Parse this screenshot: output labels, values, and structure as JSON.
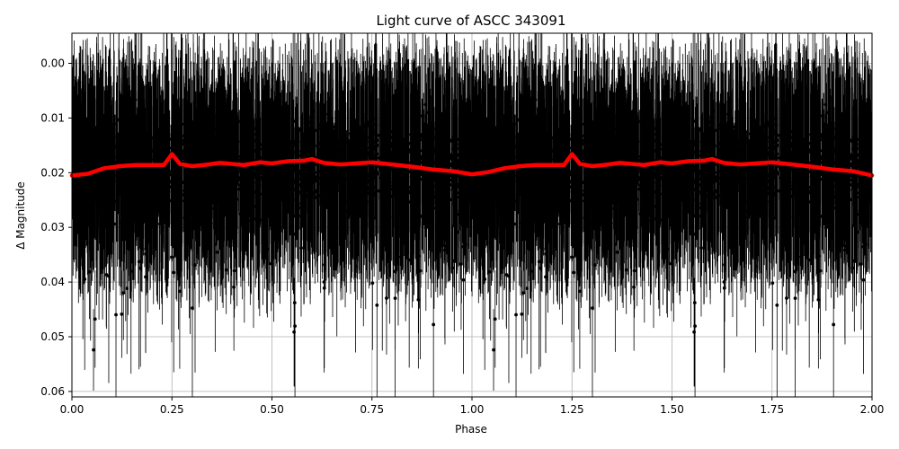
{
  "chart_data": {
    "type": "scatter",
    "title": "Light curve of ASCC 343091",
    "xlabel": "Phase",
    "ylabel": "Δ Magnitude",
    "xlim": [
      0.0,
      2.0
    ],
    "ylim": [
      0.061,
      -0.0055
    ],
    "y_inverted": true,
    "grid": true,
    "x_ticks": [
      "0.00",
      "0.25",
      "0.50",
      "0.75",
      "1.00",
      "1.25",
      "1.50",
      "1.75",
      "2.00"
    ],
    "y_ticks": [
      "0.00",
      "0.01",
      "0.02",
      "0.03",
      "0.04",
      "0.05",
      "0.06"
    ],
    "x_tick_values": [
      0.0,
      0.25,
      0.5,
      0.75,
      1.0,
      1.25,
      1.5,
      1.75,
      2.0
    ],
    "y_tick_values": [
      0.0,
      0.01,
      0.02,
      0.03,
      0.04,
      0.05,
      0.06
    ],
    "series": [
      {
        "role": "observations",
        "color": "#000000",
        "marker": "point-with-errorbar",
        "typical_center": 0.019,
        "typical_scatter": 0.012,
        "typical_error": 0.012
      },
      {
        "role": "binned-mean",
        "color": "#ff0000",
        "marker": "thick-line",
        "x": [
          0.0,
          0.04,
          0.08,
          0.12,
          0.16,
          0.2,
          0.23,
          0.25,
          0.27,
          0.3,
          0.33,
          0.37,
          0.4,
          0.43,
          0.47,
          0.5,
          0.54,
          0.58,
          0.6,
          0.63,
          0.67,
          0.71,
          0.75,
          0.8,
          0.85,
          0.9,
          0.95,
          1.0,
          1.04,
          1.08,
          1.12,
          1.16,
          1.2,
          1.23,
          1.25,
          1.27,
          1.3,
          1.33,
          1.37,
          1.4,
          1.43,
          1.47,
          1.5,
          1.54,
          1.58,
          1.6,
          1.63,
          1.67,
          1.71,
          1.75,
          1.8,
          1.85,
          1.9,
          1.95,
          2.0
        ],
        "y": [
          0.0205,
          0.0202,
          0.0192,
          0.0188,
          0.0186,
          0.0186,
          0.0186,
          0.0166,
          0.0184,
          0.0188,
          0.0186,
          0.0182,
          0.0184,
          0.0186,
          0.0181,
          0.0183,
          0.0179,
          0.0178,
          0.0175,
          0.0182,
          0.0185,
          0.0183,
          0.0181,
          0.0185,
          0.0189,
          0.0194,
          0.0197,
          0.0203,
          0.0199,
          0.0192,
          0.0188,
          0.0186,
          0.0186,
          0.0186,
          0.0166,
          0.0184,
          0.0188,
          0.0186,
          0.0182,
          0.0184,
          0.0186,
          0.0181,
          0.0183,
          0.0179,
          0.0178,
          0.0175,
          0.0182,
          0.0185,
          0.0183,
          0.0181,
          0.0185,
          0.0189,
          0.0194,
          0.0197,
          0.0205
        ]
      }
    ]
  }
}
